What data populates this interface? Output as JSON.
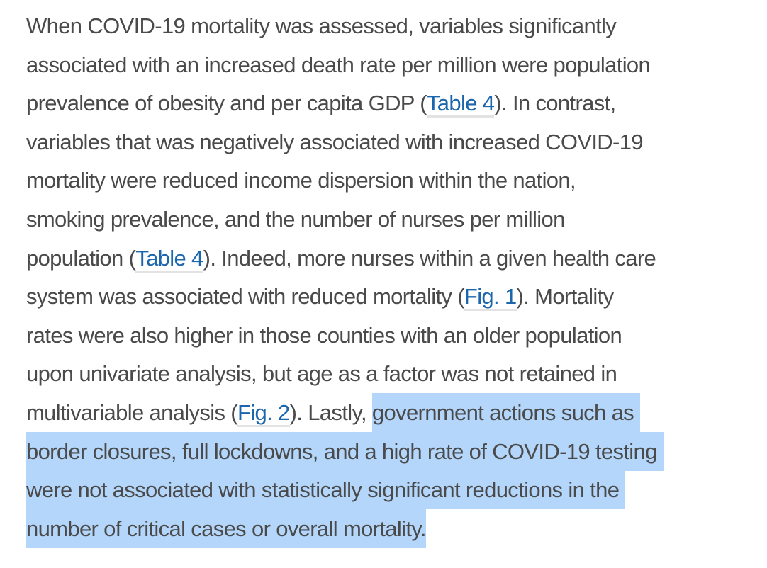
{
  "page": {
    "background": "#ffffff",
    "text_color": "#4a4a4a",
    "link_color": "#1b66ac",
    "link_underline_color": "#e3e3e3",
    "highlight_color": "#b3d6fa"
  },
  "paragraph": {
    "lines": [
      {
        "segments": [
          {
            "type": "text",
            "text": "When COVID-19 mortality was assessed, variables significantly"
          }
        ]
      },
      {
        "segments": [
          {
            "type": "text",
            "text": "associated with an increased death rate per million were population"
          }
        ]
      },
      {
        "segments": [
          {
            "type": "text",
            "text": "prevalence of obesity and per capita GDP ("
          },
          {
            "type": "link",
            "text": "Table 4"
          },
          {
            "type": "text",
            "text": "). In contrast,"
          }
        ]
      },
      {
        "segments": [
          {
            "type": "text",
            "text": "variables that was negatively associated with increased COVID-19"
          }
        ]
      },
      {
        "segments": [
          {
            "type": "text",
            "text": "mortality were reduced income dispersion within the nation,"
          }
        ]
      },
      {
        "segments": [
          {
            "type": "text",
            "text": "smoking prevalence, and the number of nurses per million"
          }
        ]
      },
      {
        "segments": [
          {
            "type": "text",
            "text": "population ("
          },
          {
            "type": "link",
            "text": "Table 4"
          },
          {
            "type": "text",
            "text": "). Indeed, more nurses within a given health care"
          }
        ]
      },
      {
        "segments": [
          {
            "type": "text",
            "text": "system was associated with reduced mortality ("
          },
          {
            "type": "link",
            "text": "Fig. 1"
          },
          {
            "type": "text",
            "text": "). Mortality"
          }
        ]
      },
      {
        "segments": [
          {
            "type": "text",
            "text": "rates were also higher in those counties with an older population"
          }
        ]
      },
      {
        "segments": [
          {
            "type": "text",
            "text": "upon univariate analysis, but age as a factor was not retained in"
          }
        ]
      },
      {
        "segments": [
          {
            "type": "text",
            "text": "multivariable analysis ("
          },
          {
            "type": "link",
            "text": "Fig. 2"
          },
          {
            "type": "text",
            "text": "). Lastly, "
          },
          {
            "type": "selection",
            "text": "government actions such as"
          }
        ]
      },
      {
        "segments": [
          {
            "type": "selection",
            "text": "border closures, full lockdowns, and a high rate of COVID-19 testing"
          }
        ]
      },
      {
        "segments": [
          {
            "type": "selection",
            "text": "were not associated with statistically significant reductions in the"
          }
        ]
      },
      {
        "segments": [
          {
            "type": "selection",
            "text": "number of critical cases or overall mortality."
          }
        ]
      }
    ]
  }
}
